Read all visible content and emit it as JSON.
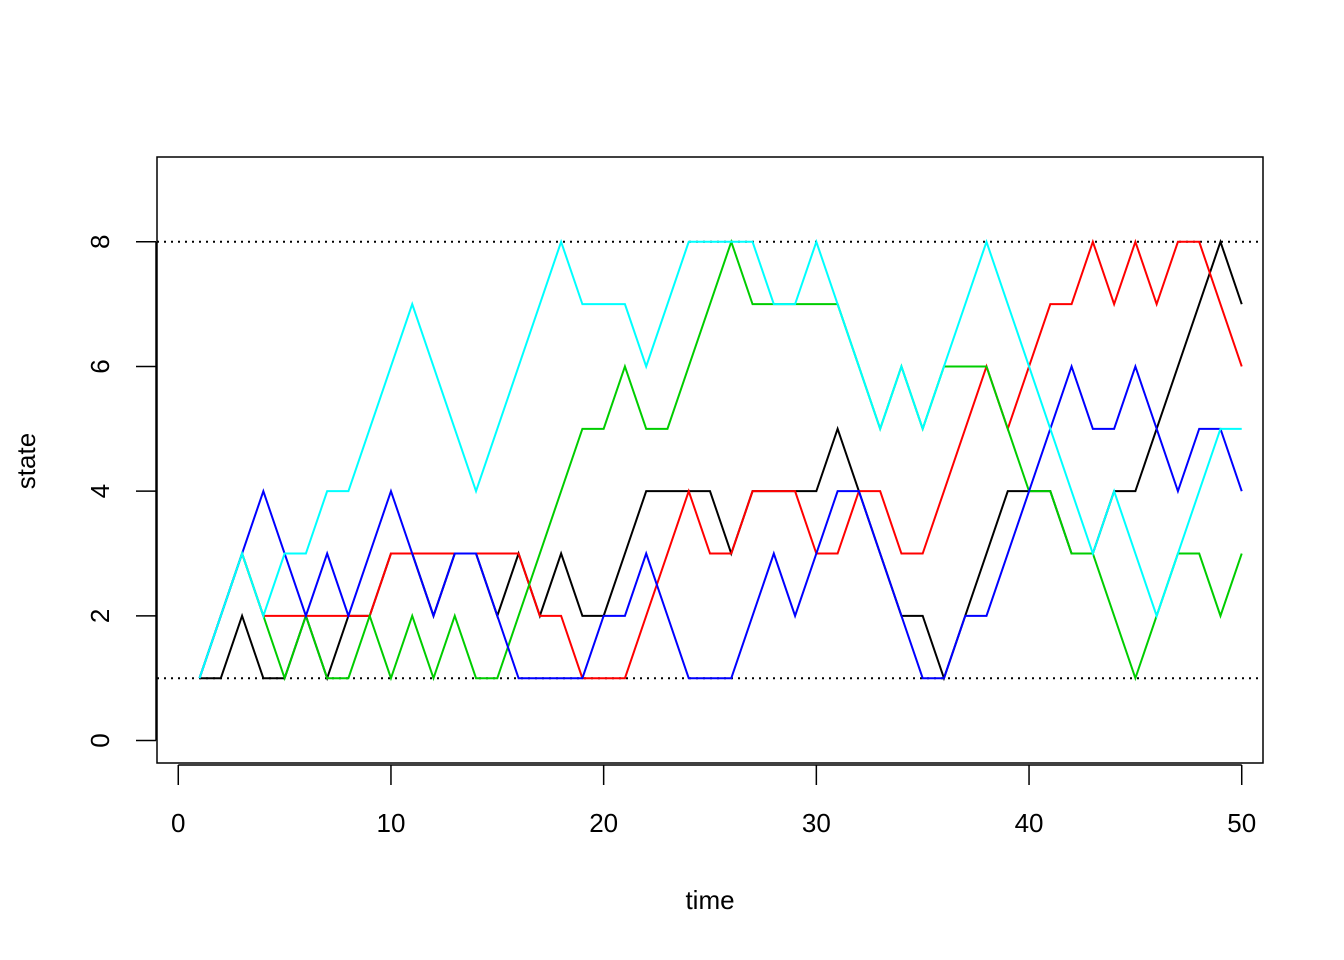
{
  "chart_data": {
    "type": "line",
    "xlabel": "time",
    "ylabel": "state",
    "xlim": [
      -1,
      51
    ],
    "ylim": [
      -0.36,
      9.36
    ],
    "x_ticks": [
      "0",
      "10",
      "20",
      "30",
      "40",
      "50"
    ],
    "y_ticks": [
      "0",
      "2",
      "4",
      "6",
      "8"
    ],
    "grid": false,
    "reference_lines": [
      {
        "y": 8,
        "style": "dotted",
        "color": "#000000"
      },
      {
        "y": 1,
        "style": "dotted",
        "color": "#000000"
      }
    ],
    "x": [
      1,
      2,
      3,
      4,
      5,
      6,
      7,
      8,
      9,
      10,
      11,
      12,
      13,
      14,
      15,
      16,
      17,
      18,
      19,
      20,
      21,
      22,
      23,
      24,
      25,
      26,
      27,
      28,
      29,
      30,
      31,
      32,
      33,
      34,
      35,
      36,
      37,
      38,
      39,
      40,
      41,
      42,
      43,
      44,
      45,
      46,
      47,
      48,
      49,
      50
    ],
    "series": [
      {
        "color": "#000000",
        "values": [
          1,
          1,
          2,
          1,
          1,
          2,
          1,
          2,
          2,
          3,
          3,
          2,
          3,
          3,
          2,
          3,
          2,
          3,
          2,
          2,
          3,
          4,
          4,
          4,
          4,
          3,
          4,
          4,
          4,
          4,
          5,
          4,
          3,
          2,
          2,
          1,
          2,
          3,
          4,
          4,
          4,
          3,
          3,
          4,
          4,
          5,
          6,
          7,
          8,
          7
        ]
      },
      {
        "color": "#FF0000",
        "values": [
          1,
          2,
          3,
          2,
          2,
          2,
          2,
          2,
          2,
          3,
          3,
          3,
          3,
          3,
          3,
          3,
          2,
          2,
          1,
          1,
          1,
          2,
          3,
          4,
          3,
          3,
          4,
          4,
          4,
          3,
          3,
          4,
          4,
          3,
          3,
          4,
          5,
          6,
          5,
          6,
          7,
          7,
          8,
          7,
          8,
          7,
          8,
          8,
          7,
          6
        ]
      },
      {
        "color": "#00CD00",
        "values": [
          1,
          2,
          3,
          2,
          1,
          2,
          1,
          1,
          2,
          1,
          2,
          1,
          2,
          1,
          1,
          2,
          3,
          4,
          5,
          5,
          6,
          5,
          5,
          6,
          7,
          8,
          7,
          7,
          7,
          7,
          7,
          6,
          5,
          6,
          5,
          6,
          6,
          6,
          5,
          4,
          4,
          3,
          3,
          2,
          1,
          2,
          3,
          3,
          2,
          3
        ]
      },
      {
        "color": "#0000FF",
        "values": [
          1,
          2,
          3,
          4,
          3,
          2,
          3,
          2,
          3,
          4,
          3,
          2,
          3,
          3,
          2,
          1,
          1,
          1,
          1,
          2,
          2,
          3,
          2,
          1,
          1,
          1,
          2,
          3,
          2,
          3,
          4,
          4,
          3,
          2,
          1,
          1,
          2,
          2,
          3,
          4,
          5,
          6,
          5,
          5,
          6,
          5,
          4,
          5,
          5,
          4
        ]
      },
      {
        "color": "#00FFFF",
        "values": [
          1,
          2,
          3,
          2,
          3,
          3,
          4,
          4,
          5,
          6,
          7,
          6,
          5,
          4,
          5,
          6,
          7,
          8,
          7,
          7,
          7,
          6,
          7,
          8,
          8,
          8,
          8,
          7,
          7,
          8,
          7,
          6,
          5,
          6,
          5,
          6,
          7,
          8,
          7,
          6,
          5,
          4,
          3,
          4,
          3,
          2,
          3,
          4,
          5,
          5
        ]
      }
    ]
  }
}
